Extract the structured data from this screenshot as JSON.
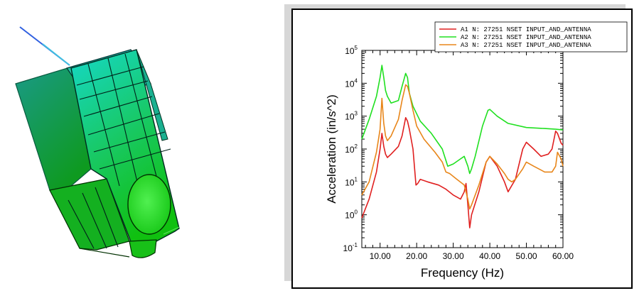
{
  "chart_data": {
    "type": "line",
    "xlabel": "Frequency (Hz)",
    "ylabel": "Acceleration (in/s^2)",
    "xlim": [
      5,
      60
    ],
    "ylim": [
      0.1,
      100000
    ],
    "yscale": "log",
    "grid": false,
    "legend_position": "top-right",
    "x_ticks": [
      "10.00",
      "20.00",
      "30.00",
      "40.00",
      "50.00",
      "60.00"
    ],
    "y_ticks": [
      {
        "base": "10",
        "exp": "-1"
      },
      {
        "base": "10",
        "exp": "0"
      },
      {
        "base": "10",
        "exp": "1"
      },
      {
        "base": "10",
        "exp": "2"
      },
      {
        "base": "10",
        "exp": "3"
      },
      {
        "base": "10",
        "exp": "4"
      },
      {
        "base": "10",
        "exp": "5"
      }
    ],
    "series": [
      {
        "name": "A1 N: 27251 NSET INPUT_AND_ANTENNA",
        "color": "#e02020",
        "x": [
          5,
          7,
          9,
          10,
          10.5,
          11,
          11.5,
          12,
          13,
          15,
          16,
          17,
          17.5,
          18,
          19,
          19.8,
          20.3,
          21,
          23,
          26,
          28,
          30,
          32,
          33,
          33.5,
          34,
          34.5,
          35,
          37,
          39,
          40,
          42,
          44,
          45,
          47,
          49,
          50,
          52,
          54,
          56,
          57,
          58,
          58.5,
          59.5,
          60
        ],
        "y": [
          0.8,
          3,
          20,
          100,
          300,
          120,
          70,
          55,
          70,
          120,
          250,
          900,
          700,
          400,
          100,
          8,
          9,
          12,
          10,
          8,
          6,
          4,
          3,
          5,
          9,
          2,
          0.4,
          1,
          5,
          40,
          60,
          30,
          10,
          5,
          12,
          100,
          160,
          100,
          60,
          70,
          100,
          350,
          300,
          150,
          130
        ]
      },
      {
        "name": "A2 N: 27251 NSET INPUT_AND_ANTENNA",
        "color": "#20e020",
        "x": [
          5,
          7,
          9,
          10,
          10.5,
          11,
          11.5,
          12,
          13,
          15,
          16,
          17,
          17.5,
          18,
          19,
          21,
          24,
          27,
          28.5,
          30,
          32,
          33,
          34,
          34.5,
          35,
          36,
          38,
          39.5,
          40,
          42,
          45,
          50,
          55,
          58,
          60
        ],
        "y": [
          200,
          800,
          4000,
          15000,
          35000,
          15000,
          6000,
          4000,
          2500,
          3000,
          8000,
          20000,
          15000,
          5000,
          2000,
          700,
          300,
          100,
          30,
          35,
          50,
          60,
          30,
          18,
          25,
          60,
          500,
          1500,
          1600,
          1000,
          600,
          450,
          420,
          400,
          380
        ]
      },
      {
        "name": "A3 N: 27251 NSET INPUT_AND_ANTENNA",
        "color": "#e8861a",
        "x": [
          5,
          7,
          9,
          10,
          10.5,
          11,
          11.5,
          12,
          13,
          15,
          16,
          17,
          17.5,
          18,
          19,
          20,
          22,
          25,
          27,
          28,
          29,
          31,
          33,
          34,
          34.5,
          35,
          37,
          39,
          40,
          42,
          44,
          45,
          46,
          47,
          49,
          50,
          52,
          55,
          57,
          58,
          58.5,
          59.5,
          60
        ],
        "y": [
          4,
          10,
          80,
          400,
          3500,
          600,
          250,
          180,
          250,
          800,
          3000,
          9000,
          8000,
          5000,
          1500,
          500,
          200,
          80,
          40,
          20,
          18,
          12,
          8,
          3,
          1.5,
          2,
          8,
          40,
          60,
          35,
          18,
          12,
          10,
          12,
          25,
          40,
          30,
          20,
          20,
          30,
          80,
          50,
          30
        ]
      }
    ]
  }
}
